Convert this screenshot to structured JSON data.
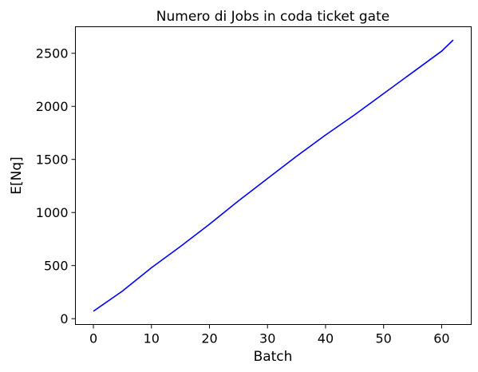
{
  "chart_data": {
    "type": "line",
    "title": "Numero di Jobs in coda ticket gate",
    "xlabel": "Batch",
    "ylabel": "E[Nq]",
    "xlim": [
      -3.1,
      65.1
    ],
    "ylim": [
      -55,
      2750
    ],
    "xticks": [
      0,
      10,
      20,
      30,
      40,
      50,
      60
    ],
    "yticks": [
      0,
      500,
      1000,
      1500,
      2000,
      2500
    ],
    "grid": false,
    "series": [
      {
        "color": "#0000ff",
        "x": [
          0,
          5,
          10,
          15,
          20,
          25,
          30,
          35,
          40,
          45,
          50,
          55,
          60,
          62
        ],
        "y": [
          70,
          260,
          480,
          680,
          890,
          1110,
          1320,
          1530,
          1730,
          1920,
          2120,
          2320,
          2520,
          2625
        ]
      }
    ]
  }
}
